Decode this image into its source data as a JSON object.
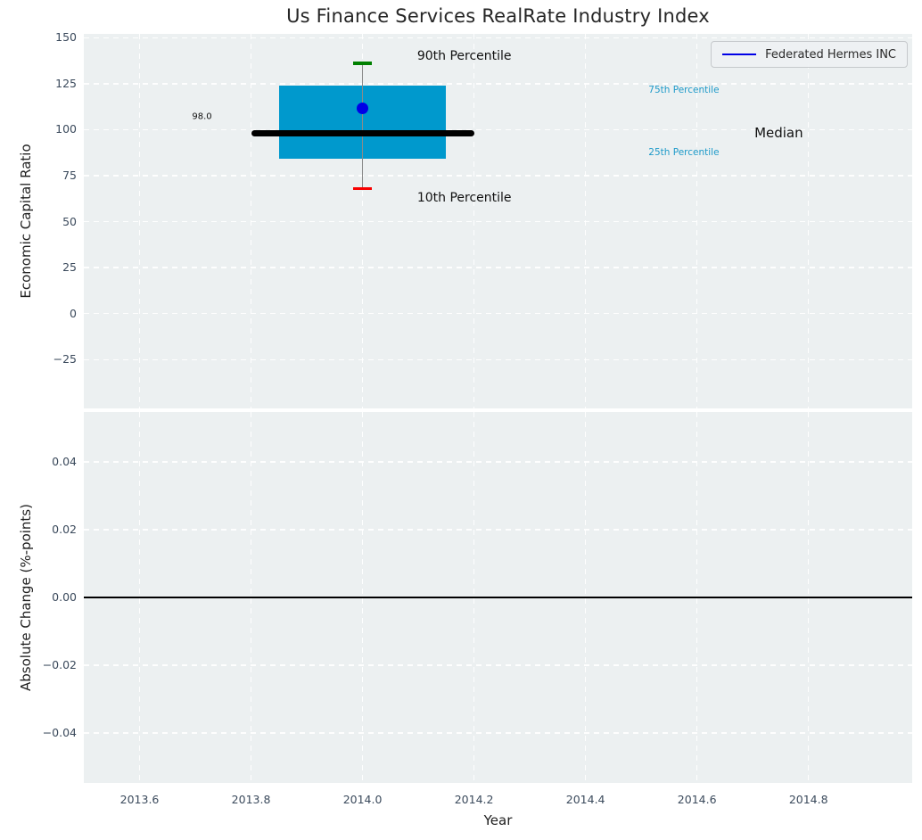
{
  "title": "Us Finance Services RealRate Industry Index",
  "legend": {
    "label": "Federated Hermes INC"
  },
  "colors": {
    "plot_bg": "#ecf0f1",
    "grid": "#ffffff",
    "box_fill": "#0099cd",
    "median_line": "#000000",
    "whisker": "#8a8a8a",
    "cap_upper": "#008000",
    "cap_lower": "#f80000",
    "company_dot": "#0000e6",
    "legend_line": "#0000e6",
    "tick_label": "#3b4a5c",
    "text": "#262626",
    "percentile_label": "#1e9ac9",
    "zero_line": "#000000"
  },
  "chart_data": [
    {
      "type": "box",
      "title": "Us Finance Services RealRate Industry Index",
      "xlabel": "",
      "ylabel": "Economic Capital Ratio",
      "xlim": [
        2013.5,
        2014.986
      ],
      "ylim": [
        -51.5,
        152.1
      ],
      "grid": true,
      "legend_position": "upper right",
      "show_xtick_labels": false,
      "xticks": [
        {
          "v": 2013.6,
          "label": "2013.6"
        },
        {
          "v": 2013.8,
          "label": "2013.8"
        },
        {
          "v": 2014.0,
          "label": "2014.0"
        },
        {
          "v": 2014.2,
          "label": "2014.2"
        },
        {
          "v": 2014.4,
          "label": "2014.4"
        },
        {
          "v": 2014.6,
          "label": "2014.6"
        },
        {
          "v": 2014.8,
          "label": "2014.8"
        }
      ],
      "yticks": [
        {
          "v": 150,
          "label": "150"
        },
        {
          "v": 125,
          "label": "125"
        },
        {
          "v": 100,
          "label": "100"
        },
        {
          "v": 75,
          "label": "75"
        },
        {
          "v": 50,
          "label": "50"
        },
        {
          "v": 25,
          "label": "25"
        },
        {
          "v": 0,
          "label": "0"
        },
        {
          "v": -25,
          "label": "−25"
        }
      ],
      "boxes": [
        {
          "x": 2014.0,
          "box_half_width": 0.15,
          "median_half_width": 0.2,
          "cap_half_width": 0.017,
          "p90": 136,
          "p75": 124,
          "median": 98.0,
          "p25": 84,
          "p10": 68,
          "company_value": 111.5,
          "median_label": "98.0"
        }
      ],
      "annotations": [
        {
          "text": "90th Percentile",
          "x": 2014.098,
          "y": 140,
          "color": "#111111",
          "size": 14,
          "align": "left",
          "name": "annotation-90th-percentile"
        },
        {
          "text": "10th Percentile",
          "x": 2014.098,
          "y": 63,
          "color": "#111111",
          "size": 14,
          "align": "left",
          "name": "annotation-10th-percentile"
        },
        {
          "text": "75th Percentile",
          "x": 2014.513,
          "y": 121.5,
          "color": "#1e9ac9",
          "size": 10.5,
          "align": "left",
          "name": "annotation-75th-percentile"
        },
        {
          "text": "25th Percentile",
          "x": 2014.513,
          "y": 87.5,
          "color": "#1e9ac9",
          "size": 10.5,
          "align": "left",
          "name": "annotation-25th-percentile"
        },
        {
          "text": "Median",
          "x": 2014.703,
          "y": 98.5,
          "color": "#111111",
          "size": 15,
          "align": "left",
          "name": "annotation-median"
        },
        {
          "text": "98.0",
          "x": 2013.712,
          "y": 107,
          "color": "#111111",
          "size": 10,
          "align": "center",
          "name": "annotation-median-value"
        }
      ]
    },
    {
      "type": "line",
      "xlabel": "Year",
      "ylabel": "Absolute Change (%-points)",
      "xlim": [
        2013.5,
        2014.986
      ],
      "ylim": [
        -0.0547,
        0.0547
      ],
      "grid": true,
      "show_xtick_labels": true,
      "zero_line": 0.0,
      "xticks": [
        {
          "v": 2013.6,
          "label": "2013.6"
        },
        {
          "v": 2013.8,
          "label": "2013.8"
        },
        {
          "v": 2014.0,
          "label": "2014.0"
        },
        {
          "v": 2014.2,
          "label": "2014.2"
        },
        {
          "v": 2014.4,
          "label": "2014.4"
        },
        {
          "v": 2014.6,
          "label": "2014.6"
        },
        {
          "v": 2014.8,
          "label": "2014.8"
        }
      ],
      "yticks": [
        {
          "v": 0.04,
          "label": "0.04"
        },
        {
          "v": 0.02,
          "label": "0.02"
        },
        {
          "v": 0.0,
          "label": "0.00"
        },
        {
          "v": -0.02,
          "label": "−0.02"
        },
        {
          "v": -0.04,
          "label": "−0.04"
        }
      ],
      "series": []
    }
  ]
}
